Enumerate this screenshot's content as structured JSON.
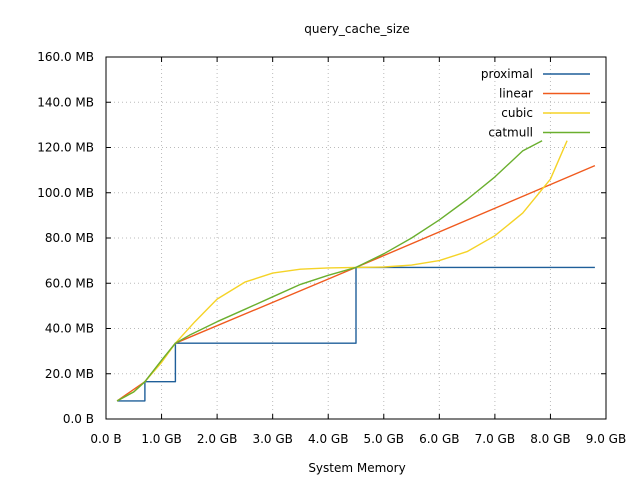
{
  "chart_data": {
    "type": "line",
    "title": "query_cache_size",
    "xlabel": "System Memory",
    "ylabel": "",
    "xlim": [
      0,
      9
    ],
    "ylim": [
      0,
      160
    ],
    "x_unit": "GB",
    "y_unit": "MB",
    "x_ticks": [
      0,
      1,
      2,
      3,
      4,
      5,
      6,
      7,
      8,
      9
    ],
    "x_tick_labels": [
      "0.0  B",
      "1.0 GB",
      "2.0 GB",
      "3.0 GB",
      "4.0 GB",
      "5.0 GB",
      "6.0 GB",
      "7.0 GB",
      "8.0 GB",
      "9.0 GB"
    ],
    "y_ticks": [
      0,
      20,
      40,
      60,
      80,
      100,
      120,
      140,
      160
    ],
    "y_tick_labels": [
      "0.0  B",
      "20.0 MB",
      "40.0 MB",
      "60.0 MB",
      "80.0 MB",
      "100.0 MB",
      "120.0 MB",
      "140.0 MB",
      "160.0 MB"
    ],
    "grid": true,
    "legend_position": "top-right",
    "series": [
      {
        "name": "proximal",
        "color": "#1f5f99",
        "step": true,
        "x": [
          0.2,
          0.7,
          0.7,
          1.25,
          1.25,
          4.5,
          4.5,
          8.8
        ],
        "values": [
          8,
          8,
          16.5,
          16.5,
          33.5,
          33.5,
          67,
          67
        ]
      },
      {
        "name": "linear",
        "color": "#f05a1e",
        "x": [
          0.2,
          0.7,
          1.25,
          4.5,
          8.8
        ],
        "values": [
          8,
          16.5,
          33.5,
          67,
          112
        ]
      },
      {
        "name": "cubic",
        "color": "#f5d327",
        "x": [
          0.2,
          0.5,
          0.7,
          1.0,
          1.25,
          1.6,
          2.0,
          2.5,
          3.0,
          3.5,
          4.0,
          4.5,
          5.0,
          5.5,
          6.0,
          6.5,
          7.0,
          7.5,
          8.0,
          8.3
        ],
        "values": [
          8,
          12,
          16.5,
          25,
          33.5,
          43,
          53,
          60.5,
          64.5,
          66.2,
          66.8,
          67,
          67.2,
          68,
          70,
          74,
          81,
          91,
          106,
          123
        ]
      },
      {
        "name": "catmull",
        "color": "#6aaf2e",
        "x": [
          0.2,
          0.5,
          0.7,
          1.0,
          1.25,
          1.5,
          2.0,
          2.5,
          3.0,
          3.5,
          4.0,
          4.5,
          5.0,
          5.5,
          6.0,
          6.5,
          7.0,
          7.5,
          7.85
        ],
        "values": [
          8,
          12,
          16.5,
          26,
          33.5,
          37,
          43,
          48.5,
          54,
          59.5,
          63.5,
          67,
          73,
          80,
          88,
          97,
          107,
          118.5,
          123
        ]
      }
    ]
  }
}
